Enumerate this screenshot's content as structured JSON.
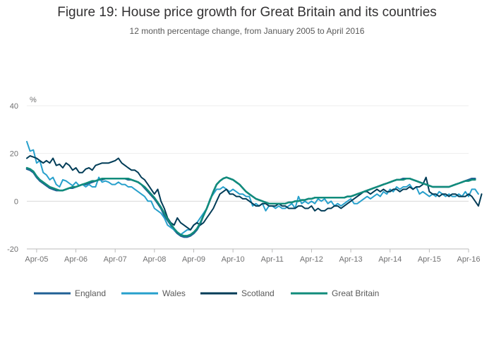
{
  "chart_data": {
    "type": "line",
    "title": "Figure 19: House price growth for Great Britain and its countries",
    "subtitle": "12 month percentage change, from January 2005 to April 2016",
    "ylabel": "%",
    "xlabel": "",
    "ylim": [
      -20,
      40
    ],
    "yticks": [
      -20,
      0,
      20,
      40
    ],
    "xlim": [
      2005.0,
      2016.25
    ],
    "xticks": [
      {
        "label": "Apr-05",
        "t": 2005.25
      },
      {
        "label": "Apr-06",
        "t": 2006.25
      },
      {
        "label": "Apr-07",
        "t": 2007.25
      },
      {
        "label": "Apr-08",
        "t": 2008.25
      },
      {
        "label": "Apr-09",
        "t": 2009.25
      },
      {
        "label": "Apr-10",
        "t": 2010.25
      },
      {
        "label": "Apr-11",
        "t": 2011.25
      },
      {
        "label": "Apr-12",
        "t": 2012.25
      },
      {
        "label": "Apr-13",
        "t": 2013.25
      },
      {
        "label": "Apr-14",
        "t": 2014.25
      },
      {
        "label": "Apr-15",
        "t": 2015.25
      },
      {
        "label": "Apr-16",
        "t": 2016.25
      }
    ],
    "grid": true,
    "legend_position": "bottom",
    "x_start": 2005.0,
    "x_step_months": 1,
    "series": [
      {
        "name": "England",
        "color": "#206095",
        "width": 2.5,
        "values": [
          13.5,
          13,
          12,
          10,
          8.5,
          7.5,
          6.5,
          5.5,
          5,
          4.5,
          4.5,
          4.5,
          5,
          5.5,
          5.5,
          6,
          6.5,
          7,
          7,
          7.5,
          8,
          8.5,
          9,
          9,
          9.5,
          9.5,
          9.5,
          9.5,
          9.5,
          9.5,
          9.5,
          9,
          9,
          8.5,
          8,
          7,
          5.5,
          4,
          2.5,
          1,
          -1,
          -3,
          -6,
          -8,
          -10,
          -12,
          -13.5,
          -14.5,
          -15,
          -15,
          -14.5,
          -13.5,
          -12,
          -9.5,
          -6,
          -3,
          0.5,
          4,
          7,
          8.5,
          9.5,
          10,
          9.5,
          9,
          8,
          7,
          5.5,
          4,
          3,
          2,
          1,
          0.5,
          0,
          -0.5,
          -1,
          -1,
          -1,
          -1,
          -1,
          -1,
          -0.5,
          -0.5,
          0,
          0,
          0.5,
          0.5,
          1,
          1,
          1.5,
          1.5,
          1.5,
          1.5,
          1.5,
          1.5,
          1.5,
          1.5,
          1.5,
          1.5,
          2,
          2,
          2.5,
          3,
          3.5,
          4,
          4.5,
          5,
          5.5,
          6,
          6.5,
          7,
          7.5,
          8,
          8.5,
          9,
          9,
          9.5,
          9.5,
          9.5,
          9,
          8.5,
          8,
          7.5,
          7,
          6.5,
          6,
          6,
          6,
          6,
          6,
          6,
          6.5,
          7,
          7.5,
          8,
          8.5,
          9,
          9.5,
          9.5
        ]
      },
      {
        "name": "Wales",
        "color": "#27a0cc",
        "width": 2,
        "values": [
          25,
          21,
          21.5,
          16,
          17,
          12,
          11,
          9,
          10,
          7,
          6,
          9,
          8.5,
          7.5,
          6.5,
          8,
          6.5,
          7,
          6,
          7,
          6,
          6,
          10,
          8,
          8.5,
          8,
          7,
          7,
          8,
          7,
          7,
          6,
          6,
          5,
          4,
          3,
          2,
          0,
          0,
          -3,
          -4,
          -5,
          -7,
          -10,
          -11,
          -12,
          -13,
          -14,
          -13,
          -12,
          -12,
          -10,
          -9,
          -7,
          -5,
          -3,
          1,
          3,
          5,
          5,
          6,
          5,
          4,
          5,
          4,
          3,
          3,
          2,
          2,
          -2,
          -1,
          -2,
          -1,
          -4,
          -2,
          -2,
          -3,
          -2,
          -3,
          -3,
          -2,
          -1,
          -3,
          2,
          -1,
          0,
          -1,
          0,
          -1,
          1,
          0,
          1,
          -1,
          0,
          -2,
          -1,
          -2,
          -1,
          0,
          1,
          -1,
          -1,
          0,
          1,
          2,
          1,
          2,
          3,
          2,
          4,
          3,
          5,
          4,
          6,
          5,
          6,
          6,
          7,
          5,
          6,
          3,
          4,
          3,
          2,
          3,
          2,
          4,
          3,
          2,
          3,
          2,
          2,
          3,
          2,
          4,
          2,
          5,
          5,
          3
        ]
      },
      {
        "name": "Scotland",
        "color": "#003c57",
        "width": 2,
        "values": [
          18,
          19,
          18.5,
          18,
          17,
          16,
          17,
          16,
          18,
          15,
          15.5,
          14,
          16,
          15,
          13,
          14,
          12,
          12,
          13.5,
          14,
          13,
          15,
          15.5,
          16,
          16,
          16,
          16.5,
          17,
          18,
          16,
          15,
          14,
          13,
          13,
          12,
          10,
          9,
          7,
          5,
          3,
          5,
          0,
          -3,
          -7,
          -9,
          -10,
          -7,
          -9,
          -10,
          -11,
          -12,
          -10,
          -9,
          -10,
          -9,
          -7,
          -5,
          -3,
          0,
          3,
          4,
          5,
          3,
          3,
          2,
          2,
          1,
          1,
          0,
          -1,
          -2,
          -2,
          -1,
          -1,
          -2,
          -2,
          -2,
          -1,
          -2,
          -2,
          -3,
          -3,
          -3,
          -2,
          -2,
          -3,
          -3,
          -2,
          -4,
          -3,
          -4,
          -4,
          -3,
          -3,
          -2,
          -2,
          -3,
          -2,
          -1,
          0,
          1,
          2,
          3,
          4,
          4,
          3,
          4,
          5,
          4,
          5,
          4,
          4,
          5,
          5,
          4,
          5,
          5,
          6,
          5,
          6,
          6,
          7,
          10,
          4,
          3,
          3,
          2,
          3,
          3,
          2,
          3,
          3,
          2,
          2,
          2,
          3,
          2,
          0,
          -2,
          3
        ]
      },
      {
        "name": "Great Britain",
        "color": "#118c7b",
        "width": 2.5,
        "values": [
          14,
          13.5,
          12.5,
          10.5,
          9,
          8,
          7,
          6,
          5.5,
          5,
          4.5,
          4.5,
          5,
          5.5,
          6,
          6,
          6.5,
          7,
          7.5,
          8,
          8.5,
          8.5,
          9,
          9.5,
          9.5,
          9.5,
          9.5,
          9.5,
          9.5,
          9.5,
          9.5,
          9.5,
          9,
          8.5,
          8,
          7,
          6,
          4.5,
          3,
          1.5,
          -0.5,
          -2.5,
          -5,
          -7.5,
          -9.5,
          -11.5,
          -13,
          -14,
          -14.5,
          -14.5,
          -14,
          -13,
          -11.5,
          -9,
          -6,
          -3,
          0.5,
          4,
          7,
          8.5,
          9.5,
          10,
          9.5,
          9,
          8,
          7,
          5.5,
          4,
          3,
          2,
          1,
          0.5,
          0,
          -0.5,
          -1,
          -1,
          -1,
          -1,
          -1,
          -1,
          -0.5,
          -0.5,
          0,
          0,
          0.5,
          0.5,
          1,
          1,
          1.5,
          1.5,
          1.5,
          1.5,
          1.5,
          1.5,
          1.5,
          1.5,
          1.5,
          1.5,
          2,
          2,
          2.5,
          3,
          3.5,
          4,
          4.5,
          5,
          5.5,
          6,
          6.5,
          7,
          7.5,
          8,
          8.5,
          9,
          9,
          9,
          9.5,
          9.5,
          9,
          8.5,
          8,
          7.5,
          7,
          6.5,
          6,
          6,
          6,
          6,
          6,
          6,
          6.5,
          7,
          7.5,
          8,
          8.5,
          8.5,
          9,
          9
        ]
      }
    ]
  }
}
